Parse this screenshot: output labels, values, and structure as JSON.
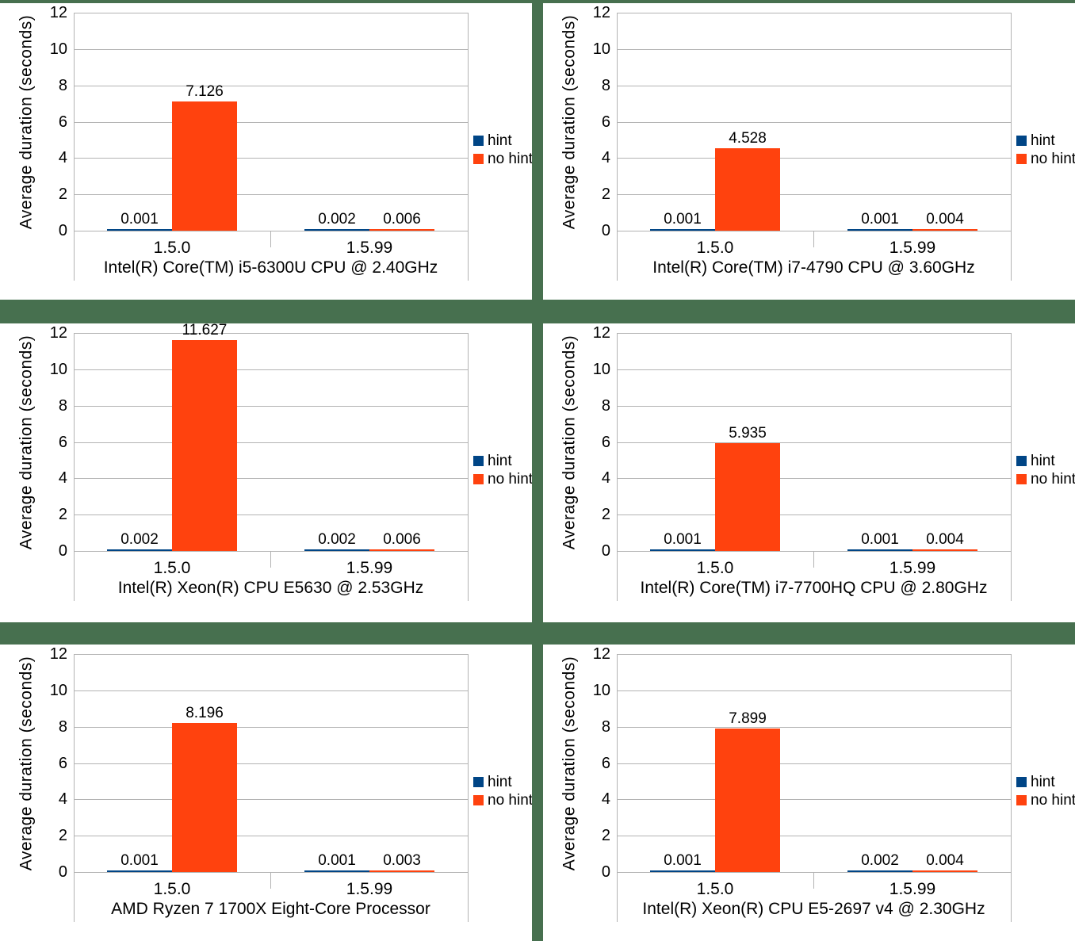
{
  "page": {
    "background_color": "#47704F",
    "chart_background": "#FFFFFF",
    "gridline_color": "#B3B3B3",
    "text_color": "#000000"
  },
  "legend": {
    "position": "right",
    "items": [
      {
        "label": "hint",
        "color": "#004586"
      },
      {
        "label": "no hint",
        "color": "#FF420E"
      }
    ]
  },
  "chart_data": [
    {
      "type": "bar",
      "xlabel": "Intel(R) Core(TM) i5-6300U CPU @ 2.40GHz",
      "ylabel": "Average duration (seconds)",
      "ylim": [
        0,
        12
      ],
      "yticks": [
        0,
        2,
        4,
        6,
        8,
        10,
        12
      ],
      "grid": true,
      "legend_position": "right",
      "categories": [
        "1.5.0",
        "1.5.99"
      ],
      "series": [
        {
          "name": "hint",
          "color": "#004586",
          "values": [
            0.001,
            0.002
          ]
        },
        {
          "name": "no hint",
          "color": "#FF420E",
          "values": [
            7.126,
            0.006
          ]
        }
      ]
    },
    {
      "type": "bar",
      "xlabel": "Intel(R) Core(TM) i7-4790 CPU @ 3.60GHz",
      "ylabel": "Average duration (seconds)",
      "ylim": [
        0,
        12
      ],
      "yticks": [
        0,
        2,
        4,
        6,
        8,
        10,
        12
      ],
      "grid": true,
      "legend_position": "right",
      "categories": [
        "1.5.0",
        "1.5.99"
      ],
      "series": [
        {
          "name": "hint",
          "color": "#004586",
          "values": [
            0.001,
            0.001
          ]
        },
        {
          "name": "no hint",
          "color": "#FF420E",
          "values": [
            4.528,
            0.004
          ]
        }
      ]
    },
    {
      "type": "bar",
      "xlabel": "Intel(R) Xeon(R) CPU E5630 @ 2.53GHz",
      "ylabel": "Average duration (seconds)",
      "ylim": [
        0,
        12
      ],
      "yticks": [
        0,
        2,
        4,
        6,
        8,
        10,
        12
      ],
      "grid": true,
      "legend_position": "right",
      "categories": [
        "1.5.0",
        "1.5.99"
      ],
      "series": [
        {
          "name": "hint",
          "color": "#004586",
          "values": [
            0.002,
            0.002
          ]
        },
        {
          "name": "no hint",
          "color": "#FF420E",
          "values": [
            11.627,
            0.006
          ]
        }
      ]
    },
    {
      "type": "bar",
      "xlabel": "Intel(R) Core(TM) i7-7700HQ CPU @ 2.80GHz",
      "ylabel": "Average duration (seconds)",
      "ylim": [
        0,
        12
      ],
      "yticks": [
        0,
        2,
        4,
        6,
        8,
        10,
        12
      ],
      "grid": true,
      "legend_position": "right",
      "categories": [
        "1.5.0",
        "1.5.99"
      ],
      "series": [
        {
          "name": "hint",
          "color": "#004586",
          "values": [
            0.001,
            0.001
          ]
        },
        {
          "name": "no hint",
          "color": "#FF420E",
          "values": [
            5.935,
            0.004
          ]
        }
      ]
    },
    {
      "type": "bar",
      "xlabel": "AMD Ryzen 7 1700X Eight-Core Processor",
      "ylabel": "Average duration (seconds)",
      "ylim": [
        0,
        12
      ],
      "yticks": [
        0,
        2,
        4,
        6,
        8,
        10,
        12
      ],
      "grid": true,
      "legend_position": "right",
      "categories": [
        "1.5.0",
        "1.5.99"
      ],
      "series": [
        {
          "name": "hint",
          "color": "#004586",
          "values": [
            0.001,
            0.001
          ]
        },
        {
          "name": "no hint",
          "color": "#FF420E",
          "values": [
            8.196,
            0.003
          ]
        }
      ]
    },
    {
      "type": "bar",
      "xlabel": "Intel(R) Xeon(R) CPU E5-2697 v4 @ 2.30GHz",
      "ylabel": "Average duration (seconds)",
      "ylim": [
        0,
        12
      ],
      "yticks": [
        0,
        2,
        4,
        6,
        8,
        10,
        12
      ],
      "grid": true,
      "legend_position": "right",
      "categories": [
        "1.5.0",
        "1.5.99"
      ],
      "series": [
        {
          "name": "hint",
          "color": "#004586",
          "values": [
            0.001,
            0.002
          ]
        },
        {
          "name": "no hint",
          "color": "#FF420E",
          "values": [
            7.899,
            0.004
          ]
        }
      ]
    }
  ]
}
